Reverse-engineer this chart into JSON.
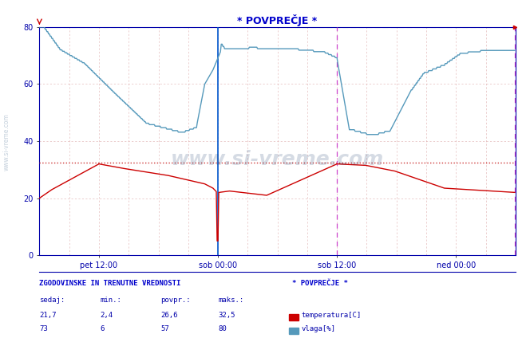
{
  "title": "* POVPREČJE *",
  "bg_color": "#ffffff",
  "temp_color": "#cc0000",
  "humidity_color": "#5599bb",
  "vline_blue": "#0055cc",
  "vline_magenta": "#cc44cc",
  "grid_minor_color": "#ddaaaa",
  "grid_major_color": "#cc8888",
  "avg_line_color": "#cc3333",
  "top_dashed_color": "#88bbdd",
  "title_color": "#0000cc",
  "axis_color": "#0000aa",
  "xlim": [
    0,
    576
  ],
  "ylim": [
    0,
    80
  ],
  "yticks": [
    0,
    20,
    40,
    60,
    80
  ],
  "xtick_positions": [
    72,
    216,
    360,
    504
  ],
  "xtick_labels": [
    "pet 12:00",
    "sob 00:00",
    "sob 12:00",
    "ned 00:00"
  ],
  "temp_avg_y": 32.5,
  "vline_solid_x": 216,
  "vline_dashed_x1": 360,
  "vline_dashed_x2": 576,
  "footer_title": "ZGODOVINSKE IN TRENUTNE VREDNOSTI",
  "footer_cols": [
    "sedaj:",
    "min.:",
    "povpr.:",
    "maks.:"
  ],
  "footer_temp_vals": [
    "21,7",
    "2,4",
    "26,6",
    "32,5"
  ],
  "footer_hum_vals": [
    "73",
    "6",
    "57",
    "80"
  ],
  "legend_title": "* POVPREČJE *",
  "legend_temp_label": "temperatura[C]",
  "legend_hum_label": "vlaga[%]",
  "watermark": "www.si-vreme.com"
}
